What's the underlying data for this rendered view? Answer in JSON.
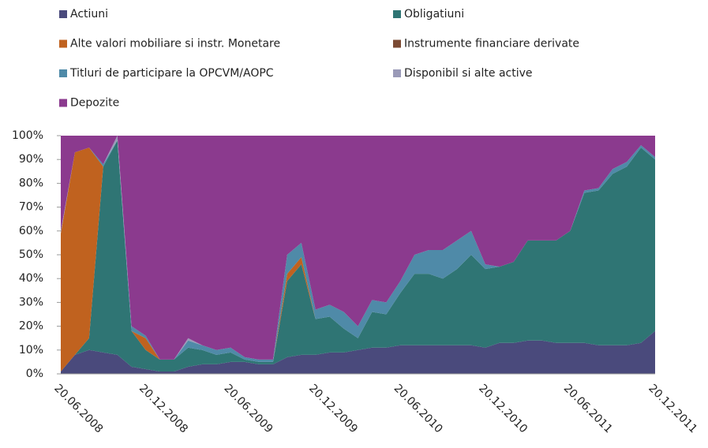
{
  "chart_data": {
    "type": "stacked_area_100",
    "categories": [
      "20.06.2008",
      null,
      null,
      null,
      null,
      null,
      "20.12.2008",
      null,
      null,
      null,
      null,
      null,
      "20.06.2009",
      null,
      null,
      null,
      null,
      null,
      "20.12.2009",
      null,
      null,
      null,
      null,
      null,
      "20.06.2010",
      null,
      null,
      null,
      null,
      null,
      "20.12.2010",
      null,
      null,
      null,
      null,
      null,
      "20.06.2011",
      null,
      null,
      null,
      null,
      null,
      "20.12.2011"
    ],
    "series": [
      {
        "name": "Actiuni",
        "color": "#4a4a7c",
        "values": [
          1,
          8,
          10,
          9,
          8,
          3,
          2,
          1,
          1,
          3,
          4,
          4,
          5,
          5,
          4,
          4,
          7,
          8,
          8,
          9,
          9,
          10,
          11,
          11,
          12,
          12,
          12,
          12,
          12,
          12,
          11,
          13,
          13,
          14,
          14,
          13,
          13,
          13,
          12,
          12,
          12,
          13,
          18
        ]
      },
      {
        "name": "Obligatiuni",
        "color": "#2f7574",
        "values": [
          0,
          0,
          5,
          78,
          90,
          15,
          8,
          5,
          5,
          8,
          6,
          4,
          4,
          1,
          1,
          1,
          32,
          38,
          15,
          15,
          10,
          5,
          15,
          14,
          22,
          30,
          30,
          28,
          32,
          38,
          33,
          32,
          34,
          42,
          42,
          43,
          47,
          63,
          65,
          72,
          75,
          82,
          72
        ]
      },
      {
        "name": "Alte valori mobiliare si instr. Monetare",
        "color": "#c0621f",
        "values": [
          58,
          85,
          80,
          0,
          0,
          0,
          5,
          0,
          0,
          0,
          0,
          0,
          0,
          0,
          0,
          0,
          3,
          3,
          0,
          0,
          0,
          0,
          0,
          0,
          0,
          0,
          0,
          0,
          0,
          0,
          0,
          0,
          0,
          0,
          0,
          0,
          0,
          0,
          0,
          0,
          0,
          0,
          0
        ]
      },
      {
        "name": "Instrumente financiare derivate",
        "color": "#7b4a33",
        "values": [
          0,
          0,
          0,
          0,
          0,
          0,
          0,
          0,
          0,
          0,
          0,
          0,
          0,
          0,
          0,
          0,
          0,
          0,
          0,
          0,
          0,
          0,
          0,
          0,
          0,
          0,
          0,
          0,
          0,
          0,
          0,
          0,
          0,
          0,
          0,
          0,
          0,
          0,
          0,
          0,
          0,
          0,
          0
        ]
      },
      {
        "name": "Titluri de participare la OPCVM/AOPC",
        "color": "#4f8aa8",
        "values": [
          0,
          0,
          0,
          1,
          0,
          2,
          1,
          0,
          0,
          3,
          2,
          2,
          2,
          1,
          1,
          1,
          8,
          6,
          4,
          5,
          7,
          5,
          5,
          5,
          5,
          8,
          10,
          12,
          12,
          10,
          2,
          0,
          0,
          0,
          0,
          0,
          0,
          1,
          1,
          2,
          2,
          1,
          1
        ]
      },
      {
        "name": "Disponibil si alte active",
        "color": "#9a9ab8",
        "values": [
          1,
          0,
          0,
          0,
          2,
          0,
          0,
          0,
          0,
          1,
          0,
          0,
          0,
          0,
          0,
          0,
          0,
          0,
          0,
          0,
          0,
          0,
          0,
          0,
          0,
          0,
          0,
          0,
          0,
          0,
          0,
          0,
          0,
          0,
          0,
          0,
          0,
          0,
          0,
          0,
          0,
          0,
          0
        ]
      },
      {
        "name": "Depozite",
        "color": "#8b3a8e",
        "values": [
          40,
          7,
          5,
          12,
          0,
          80,
          84,
          94,
          94,
          85,
          88,
          90,
          89,
          93,
          94,
          94,
          50,
          45,
          73,
          71,
          74,
          80,
          69,
          70,
          61,
          50,
          48,
          48,
          44,
          40,
          54,
          55,
          53,
          44,
          44,
          44,
          40,
          23,
          22,
          14,
          11,
          4,
          9
        ]
      }
    ],
    "ylim": [
      0,
      100
    ],
    "yticks": [
      {
        "value": 0,
        "label": "0%"
      },
      {
        "value": 10,
        "label": "10%"
      },
      {
        "value": 20,
        "label": "20%"
      },
      {
        "value": 30,
        "label": "30%"
      },
      {
        "value": 40,
        "label": "40%"
      },
      {
        "value": 50,
        "label": "50%"
      },
      {
        "value": 60,
        "label": "60%"
      },
      {
        "value": 70,
        "label": "70%"
      },
      {
        "value": 80,
        "label": "80%"
      },
      {
        "value": 90,
        "label": "90%"
      },
      {
        "value": 100,
        "label": "100%"
      }
    ]
  }
}
